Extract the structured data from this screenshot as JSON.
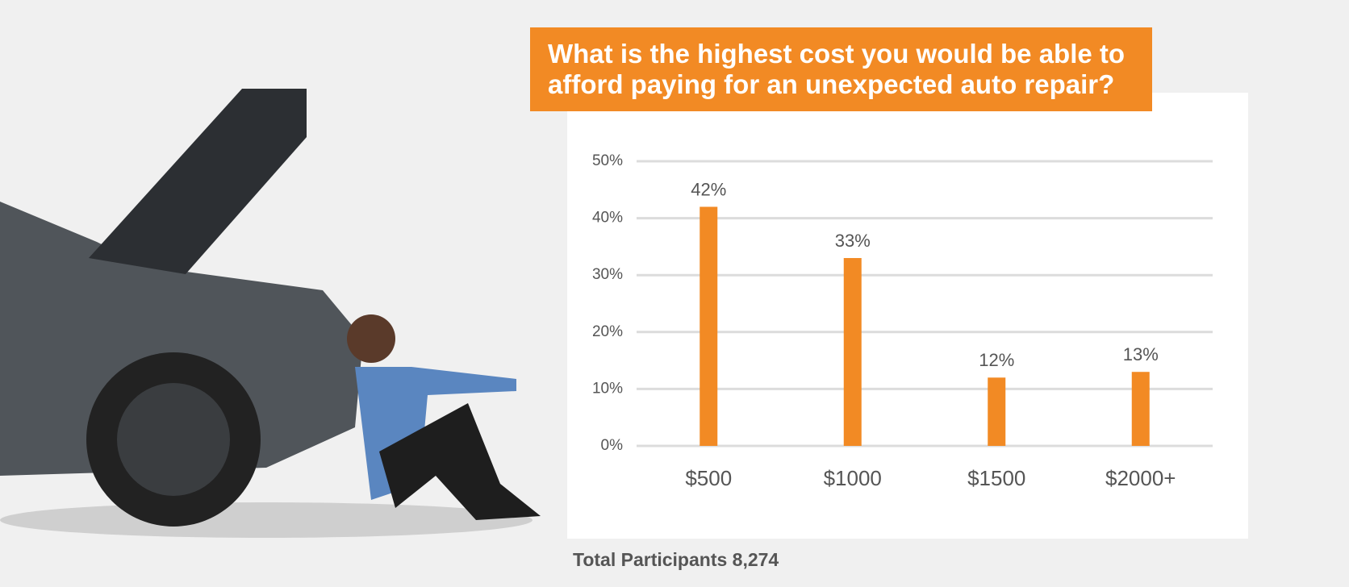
{
  "chart_data": {
    "type": "bar",
    "title": "What is the highest cost you would be able to afford paying for an unexpected auto repair?",
    "categories": [
      "$500",
      "$1000",
      "$1500",
      "$2000+"
    ],
    "values": [
      42,
      33,
      12,
      13
    ],
    "value_labels": [
      "42%",
      "33%",
      "12%",
      "13%"
    ],
    "color": "#f28a24",
    "ylim": [
      0,
      50
    ],
    "yticks": [
      {
        "value": 0,
        "label": "0%"
      },
      {
        "value": 10,
        "label": "10%"
      },
      {
        "value": 20,
        "label": "20%"
      },
      {
        "value": 30,
        "label": "30%"
      },
      {
        "value": 40,
        "label": "40%"
      },
      {
        "value": 50,
        "label": "50%"
      }
    ],
    "grid": true,
    "footnote": "Total Participants 8,274"
  }
}
